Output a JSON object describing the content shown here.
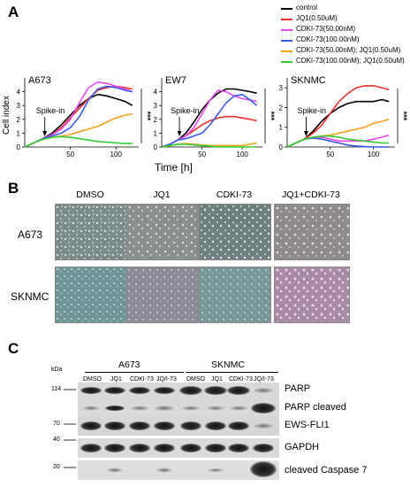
{
  "panels": {
    "a": "A",
    "b": "B",
    "c": "C"
  },
  "legend": [
    {
      "label": "control",
      "color": "#000000"
    },
    {
      "label": "JQ1(0.50uM)",
      "color": "#e8312a"
    },
    {
      "label": "CDKI-73(50.00nM)",
      "color": "#ee44ee"
    },
    {
      "label": "CDKI-73(100.00nM)",
      "color": "#3a5ae8"
    },
    {
      "label": "CDKI-73(50.00nM); JQ1(0.50uM)",
      "color": "#f3a020"
    },
    {
      "label": "CDKI-73(100.00nM); JQ1(0.50uM)",
      "color": "#33cc33"
    }
  ],
  "chart_data": [
    {
      "type": "line",
      "title": "A673",
      "ylabel": "Cell index",
      "xlabel": "Time [h]",
      "xlim": [
        0,
        125
      ],
      "ylim": [
        0,
        5
      ],
      "yticks": [
        0,
        1,
        2,
        3,
        4
      ],
      "xticks": [
        50,
        100
      ],
      "annotation": "Spike-in",
      "spike_x": 22,
      "significance": "***",
      "series": [
        {
          "name": "control",
          "x": [
            0,
            10,
            20,
            30,
            40,
            50,
            60,
            70,
            80,
            90,
            100,
            110,
            118
          ],
          "y": [
            0,
            0.3,
            0.6,
            1.0,
            1.6,
            2.3,
            3.0,
            3.5,
            3.8,
            3.7,
            3.5,
            3.3,
            3.0
          ]
        },
        {
          "name": "JQ1(0.50uM)",
          "x": [
            0,
            10,
            20,
            30,
            40,
            50,
            60,
            70,
            80,
            90,
            100,
            110,
            118
          ],
          "y": [
            0,
            0.3,
            0.6,
            0.9,
            1.4,
            2.1,
            2.8,
            3.5,
            4.1,
            4.3,
            4.4,
            4.3,
            4.2
          ]
        },
        {
          "name": "CDKI-73(50.00nM)",
          "x": [
            0,
            10,
            20,
            30,
            40,
            50,
            60,
            70,
            80,
            90,
            100,
            110,
            118
          ],
          "y": [
            0,
            0.3,
            0.6,
            0.9,
            1.3,
            2.0,
            3.2,
            4.3,
            4.7,
            4.6,
            4.4,
            4.2,
            4.0
          ]
        },
        {
          "name": "CDKI-73(100.00nM)",
          "x": [
            0,
            10,
            20,
            30,
            40,
            50,
            60,
            70,
            80,
            90,
            100,
            110,
            118
          ],
          "y": [
            0,
            0.3,
            0.6,
            0.8,
            1.0,
            1.4,
            2.2,
            3.4,
            4.2,
            4.4,
            4.3,
            4.1,
            4.0
          ]
        },
        {
          "name": "CDKI-73(50.00nM); JQ1(0.50uM)",
          "x": [
            0,
            10,
            20,
            30,
            40,
            50,
            60,
            70,
            80,
            90,
            100,
            110,
            118
          ],
          "y": [
            0,
            0.3,
            0.55,
            0.7,
            0.8,
            0.9,
            1.1,
            1.3,
            1.5,
            1.8,
            2.1,
            2.3,
            2.4
          ]
        },
        {
          "name": "CDKI-73(100.00nM); JQ1(0.50uM)",
          "x": [
            0,
            10,
            20,
            30,
            40,
            50,
            60,
            70,
            80,
            90,
            100,
            110,
            118
          ],
          "y": [
            0,
            0.3,
            0.55,
            0.7,
            0.75,
            0.7,
            0.6,
            0.5,
            0.4,
            0.35,
            0.3,
            0.25,
            0.25
          ]
        }
      ]
    },
    {
      "type": "line",
      "title": "EW7",
      "xlim": [
        0,
        125
      ],
      "ylim": [
        0,
        5
      ],
      "yticks": [
        0,
        1,
        2,
        3,
        4
      ],
      "xticks": [
        50,
        100
      ],
      "annotation": "Spike-in",
      "spike_x": 22,
      "significance": "***",
      "series": [
        {
          "name": "control",
          "x": [
            0,
            10,
            20,
            30,
            40,
            50,
            60,
            70,
            80,
            90,
            100,
            110,
            118
          ],
          "y": [
            0,
            0.2,
            0.5,
            1.0,
            1.8,
            2.7,
            3.4,
            3.9,
            4.2,
            4.2,
            4.1,
            4.0,
            3.9
          ]
        },
        {
          "name": "JQ1(0.50uM)",
          "x": [
            0,
            10,
            20,
            30,
            40,
            50,
            60,
            70,
            80,
            90,
            100,
            110,
            118
          ],
          "y": [
            0,
            0.2,
            0.5,
            0.8,
            1.2,
            1.6,
            1.9,
            2.1,
            2.2,
            2.2,
            2.1,
            2.0,
            1.9
          ]
        },
        {
          "name": "CDKI-73(50.00nM)",
          "x": [
            0,
            10,
            20,
            30,
            40,
            50,
            60,
            70,
            80,
            90,
            100,
            110,
            118
          ],
          "y": [
            0,
            0.2,
            0.5,
            0.8,
            1.4,
            2.4,
            3.4,
            4.1,
            4.0,
            3.7,
            3.5,
            3.4,
            3.3
          ]
        },
        {
          "name": "CDKI-73(100.00nM)",
          "x": [
            0,
            10,
            20,
            30,
            40,
            50,
            60,
            70,
            80,
            90,
            100,
            110,
            118
          ],
          "y": [
            0,
            0.2,
            0.5,
            0.6,
            0.8,
            1.0,
            1.6,
            2.4,
            3.2,
            3.7,
            3.8,
            3.4,
            3.0
          ]
        },
        {
          "name": "CDKI-73(50.00nM); JQ1(0.50uM)",
          "x": [
            0,
            10,
            20,
            30,
            40,
            50,
            60,
            70,
            80,
            90,
            100,
            110,
            118
          ],
          "y": [
            0,
            0.1,
            0.2,
            0.25,
            0.2,
            0.15,
            0.1,
            0.1,
            0.1,
            0.1,
            0.1,
            0.2,
            0.3
          ]
        },
        {
          "name": "CDKI-73(100.00nM); JQ1(0.50uM)",
          "x": [
            0,
            10,
            20,
            30,
            40,
            50,
            60,
            70,
            80,
            90,
            100,
            110,
            118
          ],
          "y": [
            0,
            0.1,
            0.2,
            0.2,
            0.15,
            0.1,
            0.05,
            0.0,
            0.0,
            0.0,
            0.0,
            0.0,
            0.0
          ]
        }
      ]
    },
    {
      "type": "line",
      "title": "SKNMC",
      "xlim": [
        0,
        125
      ],
      "ylim": [
        0,
        3.5
      ],
      "yticks": [
        0,
        1,
        2,
        3
      ],
      "xticks": [
        50,
        100
      ],
      "annotation": "Spike-in",
      "spike_x": 22,
      "significance": "***",
      "series": [
        {
          "name": "control",
          "x": [
            0,
            10,
            20,
            30,
            40,
            50,
            60,
            70,
            80,
            90,
            100,
            110,
            118
          ],
          "y": [
            0,
            0.2,
            0.4,
            0.8,
            1.3,
            1.7,
            2.0,
            2.2,
            2.3,
            2.3,
            2.3,
            2.4,
            2.3
          ]
        },
        {
          "name": "JQ1(0.50uM)",
          "x": [
            0,
            10,
            20,
            30,
            40,
            50,
            60,
            70,
            80,
            90,
            100,
            110,
            118
          ],
          "y": [
            0,
            0.2,
            0.4,
            0.7,
            1.1,
            1.7,
            2.3,
            2.7,
            3.0,
            3.1,
            3.1,
            3.0,
            2.9
          ]
        },
        {
          "name": "CDKI-73(50.00nM)",
          "x": [
            0,
            10,
            20,
            30,
            40,
            50,
            60,
            70,
            80,
            90,
            100,
            110,
            118
          ],
          "y": [
            0,
            0.2,
            0.4,
            0.5,
            0.5,
            0.4,
            0.3,
            0.3,
            0.3,
            0.3,
            0.4,
            0.5,
            0.6
          ]
        },
        {
          "name": "CDKI-73(100.00nM)",
          "x": [
            0,
            10,
            20,
            30,
            40,
            50,
            60,
            70,
            80,
            90,
            100,
            110,
            118
          ],
          "y": [
            0,
            0.2,
            0.4,
            0.45,
            0.4,
            0.3,
            0.2,
            0.1,
            0.05,
            0.02,
            0.0,
            0.0,
            0.0
          ]
        },
        {
          "name": "CDKI-73(50.00nM); JQ1(0.50uM)",
          "x": [
            0,
            10,
            20,
            30,
            40,
            50,
            60,
            70,
            80,
            90,
            100,
            110,
            118
          ],
          "y": [
            0,
            0.2,
            0.4,
            0.5,
            0.55,
            0.6,
            0.7,
            0.8,
            0.9,
            1.0,
            1.2,
            1.3,
            1.4
          ]
        },
        {
          "name": "CDKI-73(100.00nM); JQ1(0.50uM)",
          "x": [
            0,
            10,
            20,
            30,
            40,
            50,
            60,
            70,
            80,
            90,
            100,
            110,
            118
          ],
          "y": [
            0,
            0.2,
            0.4,
            0.5,
            0.55,
            0.55,
            0.5,
            0.4,
            0.35,
            0.3,
            0.25,
            0.2,
            0.2
          ]
        }
      ]
    }
  ],
  "time_label": "Time [h]",
  "micro": {
    "columns": [
      "DMSO",
      "JQ1",
      "CDKI-73",
      "JQ1+CDKI-73"
    ],
    "rows": [
      "A673",
      "SKNMC"
    ]
  },
  "blot": {
    "kda_label": "kDa",
    "groups": [
      "A673",
      "SKNMC"
    ],
    "lanes": [
      "DMSO",
      "JQ1",
      "CDKI-73",
      "JQ/I-73",
      "DMSO",
      "JQ1",
      "CDKI-73",
      "JQ/I-73"
    ],
    "markers": [
      "114",
      "70",
      "40",
      "20"
    ],
    "proteins": [
      "PARP",
      "PARP cleaved",
      "EWS-FLI1",
      "GAPDH",
      "cleaved Caspase 7"
    ]
  }
}
